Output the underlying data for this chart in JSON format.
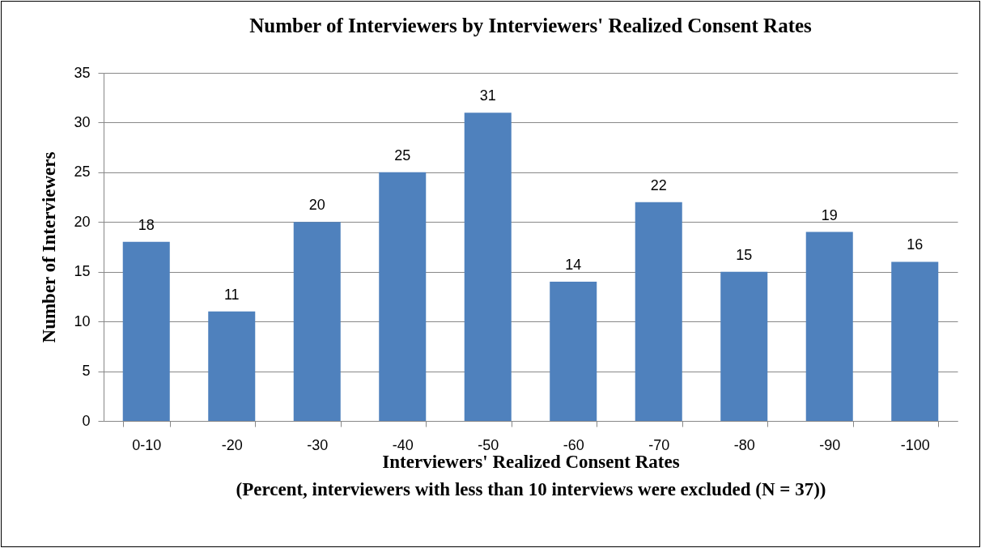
{
  "chart_data": {
    "type": "bar",
    "title": "Number of Interviewers by Interviewers' Realized Consent Rates",
    "xlabel": "Interviewers' Realized Consent Rates\n(Percent, interviewers with less than 10 interviews were excluded (N = 37))",
    "ylabel": "Number of Interviewers",
    "categories": [
      "0-10",
      "-20",
      "-30",
      "-40",
      "-50",
      "-60",
      "-70",
      "-80",
      "-90",
      "-100"
    ],
    "values": [
      18,
      11,
      20,
      25,
      31,
      14,
      22,
      15,
      19,
      16
    ],
    "color": "#4f81bd",
    "ylim": [
      0,
      35
    ],
    "yticks": [
      0,
      5,
      10,
      15,
      20,
      25,
      30,
      35
    ],
    "grid": "y",
    "data_labels": true
  }
}
